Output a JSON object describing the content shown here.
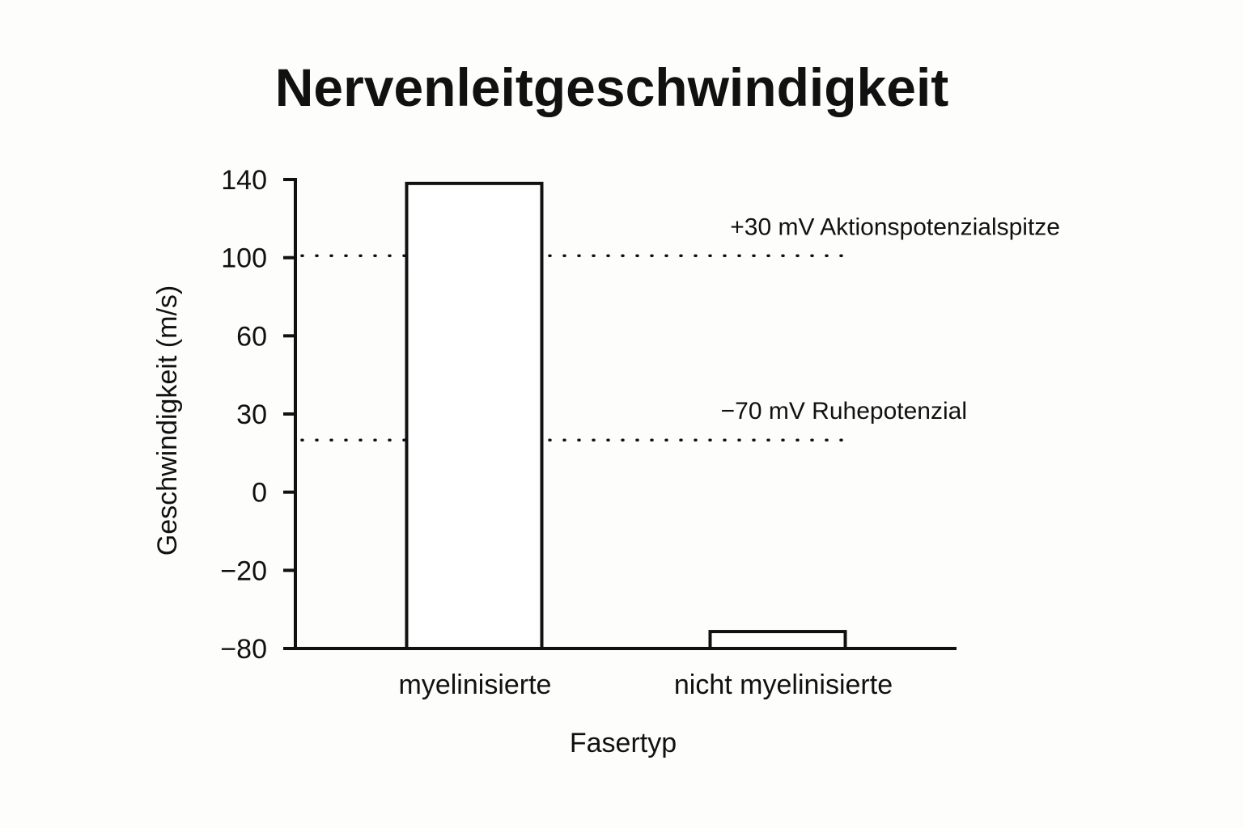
{
  "chart_data": {
    "type": "bar",
    "title": "Nervenleitgeschwindigkeit",
    "xlabel": "Fasertyp",
    "ylabel": "Geschwindigkeit (m/s)",
    "categories": [
      "myelinisierte",
      "nicht myelinisierte"
    ],
    "values": [
      138,
      -67
    ],
    "y_ticks": [
      {
        "label": "140"
      },
      {
        "label": "100"
      },
      {
        "label": "60"
      },
      {
        "label": "30"
      },
      {
        "label": "0"
      },
      {
        "label": "−20"
      },
      {
        "label": "−80"
      }
    ],
    "reference_lines": [
      {
        "label": "+30 mV Aktionspotenzialspitze",
        "value": 101,
        "style": "dotted"
      },
      {
        "label": "−70 mV Ruhepotenzial",
        "value": 20,
        "style": "dotted"
      }
    ],
    "grid": false,
    "legend": "none",
    "bar_fill": "#ffffff",
    "stroke_color": "#111111",
    "background": "#fdfdfc"
  }
}
